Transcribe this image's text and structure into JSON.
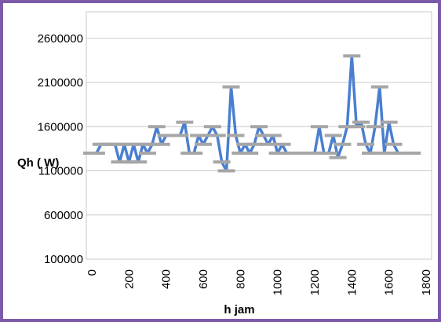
{
  "chart_data": {
    "type": "line",
    "title": "",
    "xlabel": "h jam",
    "ylabel": "Qh  ( W)",
    "xlim": [
      0,
      1800
    ],
    "ylim": [
      100000,
      2900000
    ],
    "xticks": [
      0,
      200,
      400,
      600,
      800,
      1000,
      1200,
      1400,
      1600,
      1800
    ],
    "yticks": [
      100000,
      600000,
      1100000,
      1600000,
      2100000,
      2600000
    ],
    "xtick_labels": [
      "0",
      "200",
      "400",
      "600",
      "800",
      "1000",
      "1200",
      "1400",
      "1600",
      "1800"
    ],
    "ytick_labels": [
      "100000",
      "600000",
      "1100000",
      "1600000",
      "2100000",
      "2600000"
    ],
    "grid": "horizontal",
    "legend": "none",
    "series": [
      {
        "line_color": "#4a7fd0",
        "marker_color": "#a6a6a6",
        "marker": "dash",
        "x": [
          0,
          25,
          50,
          75,
          100,
          125,
          150,
          175,
          200,
          225,
          250,
          275,
          300,
          325,
          350,
          375,
          400,
          425,
          450,
          475,
          500,
          525,
          550,
          575,
          600,
          625,
          650,
          675,
          700,
          725,
          750,
          775,
          800,
          825,
          850,
          875,
          900,
          925,
          950,
          975,
          1000,
          1025,
          1050,
          1075,
          1100,
          1125,
          1150,
          1175,
          1200,
          1225,
          1250,
          1275,
          1300,
          1325,
          1350,
          1375,
          1400,
          1425,
          1450,
          1475,
          1500,
          1525,
          1550,
          1575,
          1600,
          1625,
          1650,
          1675,
          1700,
          1725
        ],
        "y": [
          1300000,
          1300000,
          1400000,
          1400000,
          1400000,
          1400000,
          1200000,
          1400000,
          1200000,
          1400000,
          1200000,
          1400000,
          1300000,
          1400000,
          1600000,
          1400000,
          1500000,
          1500000,
          1500000,
          1500000,
          1650000,
          1300000,
          1300000,
          1500000,
          1400000,
          1500000,
          1600000,
          1500000,
          1200000,
          1100000,
          2050000,
          1500000,
          1300000,
          1400000,
          1300000,
          1400000,
          1600000,
          1500000,
          1400000,
          1500000,
          1300000,
          1400000,
          1300000,
          1300000,
          1300000,
          1300000,
          1300000,
          1300000,
          1300000,
          1600000,
          1300000,
          1300000,
          1500000,
          1250000,
          1400000,
          1600000,
          2400000,
          1600000,
          1650000,
          1400000,
          1300000,
          1600000,
          2050000,
          1300000,
          1650000,
          1400000,
          1300000,
          1300000,
          1300000,
          1300000
        ]
      }
    ]
  }
}
